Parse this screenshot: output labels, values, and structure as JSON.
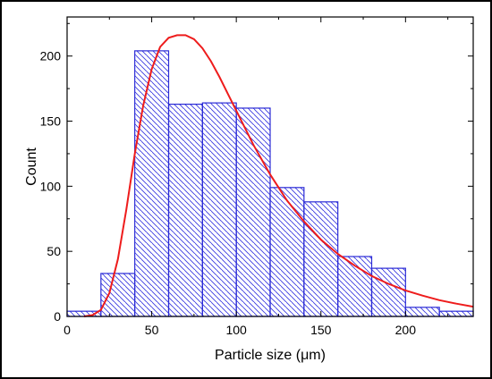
{
  "chart_data": {
    "type": "bar",
    "title": "",
    "xlabel": "Particle size (μm)",
    "ylabel": "Count",
    "xlim": [
      0,
      240
    ],
    "ylim": [
      0,
      230
    ],
    "x_ticks": [
      0,
      50,
      100,
      150,
      200
    ],
    "y_ticks": [
      0,
      50,
      100,
      150,
      200
    ],
    "grid": false,
    "legend": "none",
    "bins": [
      {
        "start": 0,
        "end": 20,
        "count": 4
      },
      {
        "start": 20,
        "end": 40,
        "count": 33
      },
      {
        "start": 40,
        "end": 60,
        "count": 204
      },
      {
        "start": 60,
        "end": 80,
        "count": 163
      },
      {
        "start": 80,
        "end": 100,
        "count": 164
      },
      {
        "start": 100,
        "end": 120,
        "count": 160
      },
      {
        "start": 120,
        "end": 140,
        "count": 99
      },
      {
        "start": 140,
        "end": 160,
        "count": 88
      },
      {
        "start": 160,
        "end": 180,
        "count": 46
      },
      {
        "start": 180,
        "end": 200,
        "count": 37
      },
      {
        "start": 200,
        "end": 220,
        "count": 7
      },
      {
        "start": 220,
        "end": 240,
        "count": 4
      }
    ],
    "fit_curve": {
      "points": [
        [
          10,
          0
        ],
        [
          15,
          1
        ],
        [
          20,
          5
        ],
        [
          25,
          18
        ],
        [
          30,
          44
        ],
        [
          35,
          82
        ],
        [
          40,
          125
        ],
        [
          45,
          162
        ],
        [
          50,
          190
        ],
        [
          55,
          207
        ],
        [
          60,
          214
        ],
        [
          65,
          216
        ],
        [
          70,
          216
        ],
        [
          75,
          213
        ],
        [
          80,
          206
        ],
        [
          85,
          196
        ],
        [
          90,
          184
        ],
        [
          95,
          171
        ],
        [
          100,
          158
        ],
        [
          110,
          132
        ],
        [
          120,
          109
        ],
        [
          130,
          89
        ],
        [
          140,
          73
        ],
        [
          150,
          59
        ],
        [
          160,
          48
        ],
        [
          170,
          39
        ],
        [
          180,
          31
        ],
        [
          190,
          25
        ],
        [
          200,
          20
        ],
        [
          210,
          16
        ],
        [
          220,
          12.5
        ],
        [
          230,
          9.8
        ],
        [
          240,
          7.5
        ]
      ]
    },
    "colors": {
      "bar_outline": "#2b2bd6",
      "bar_hatch": "#3a3ae0",
      "fit_curve": "#ee1c1c",
      "axes": "#000000"
    }
  }
}
